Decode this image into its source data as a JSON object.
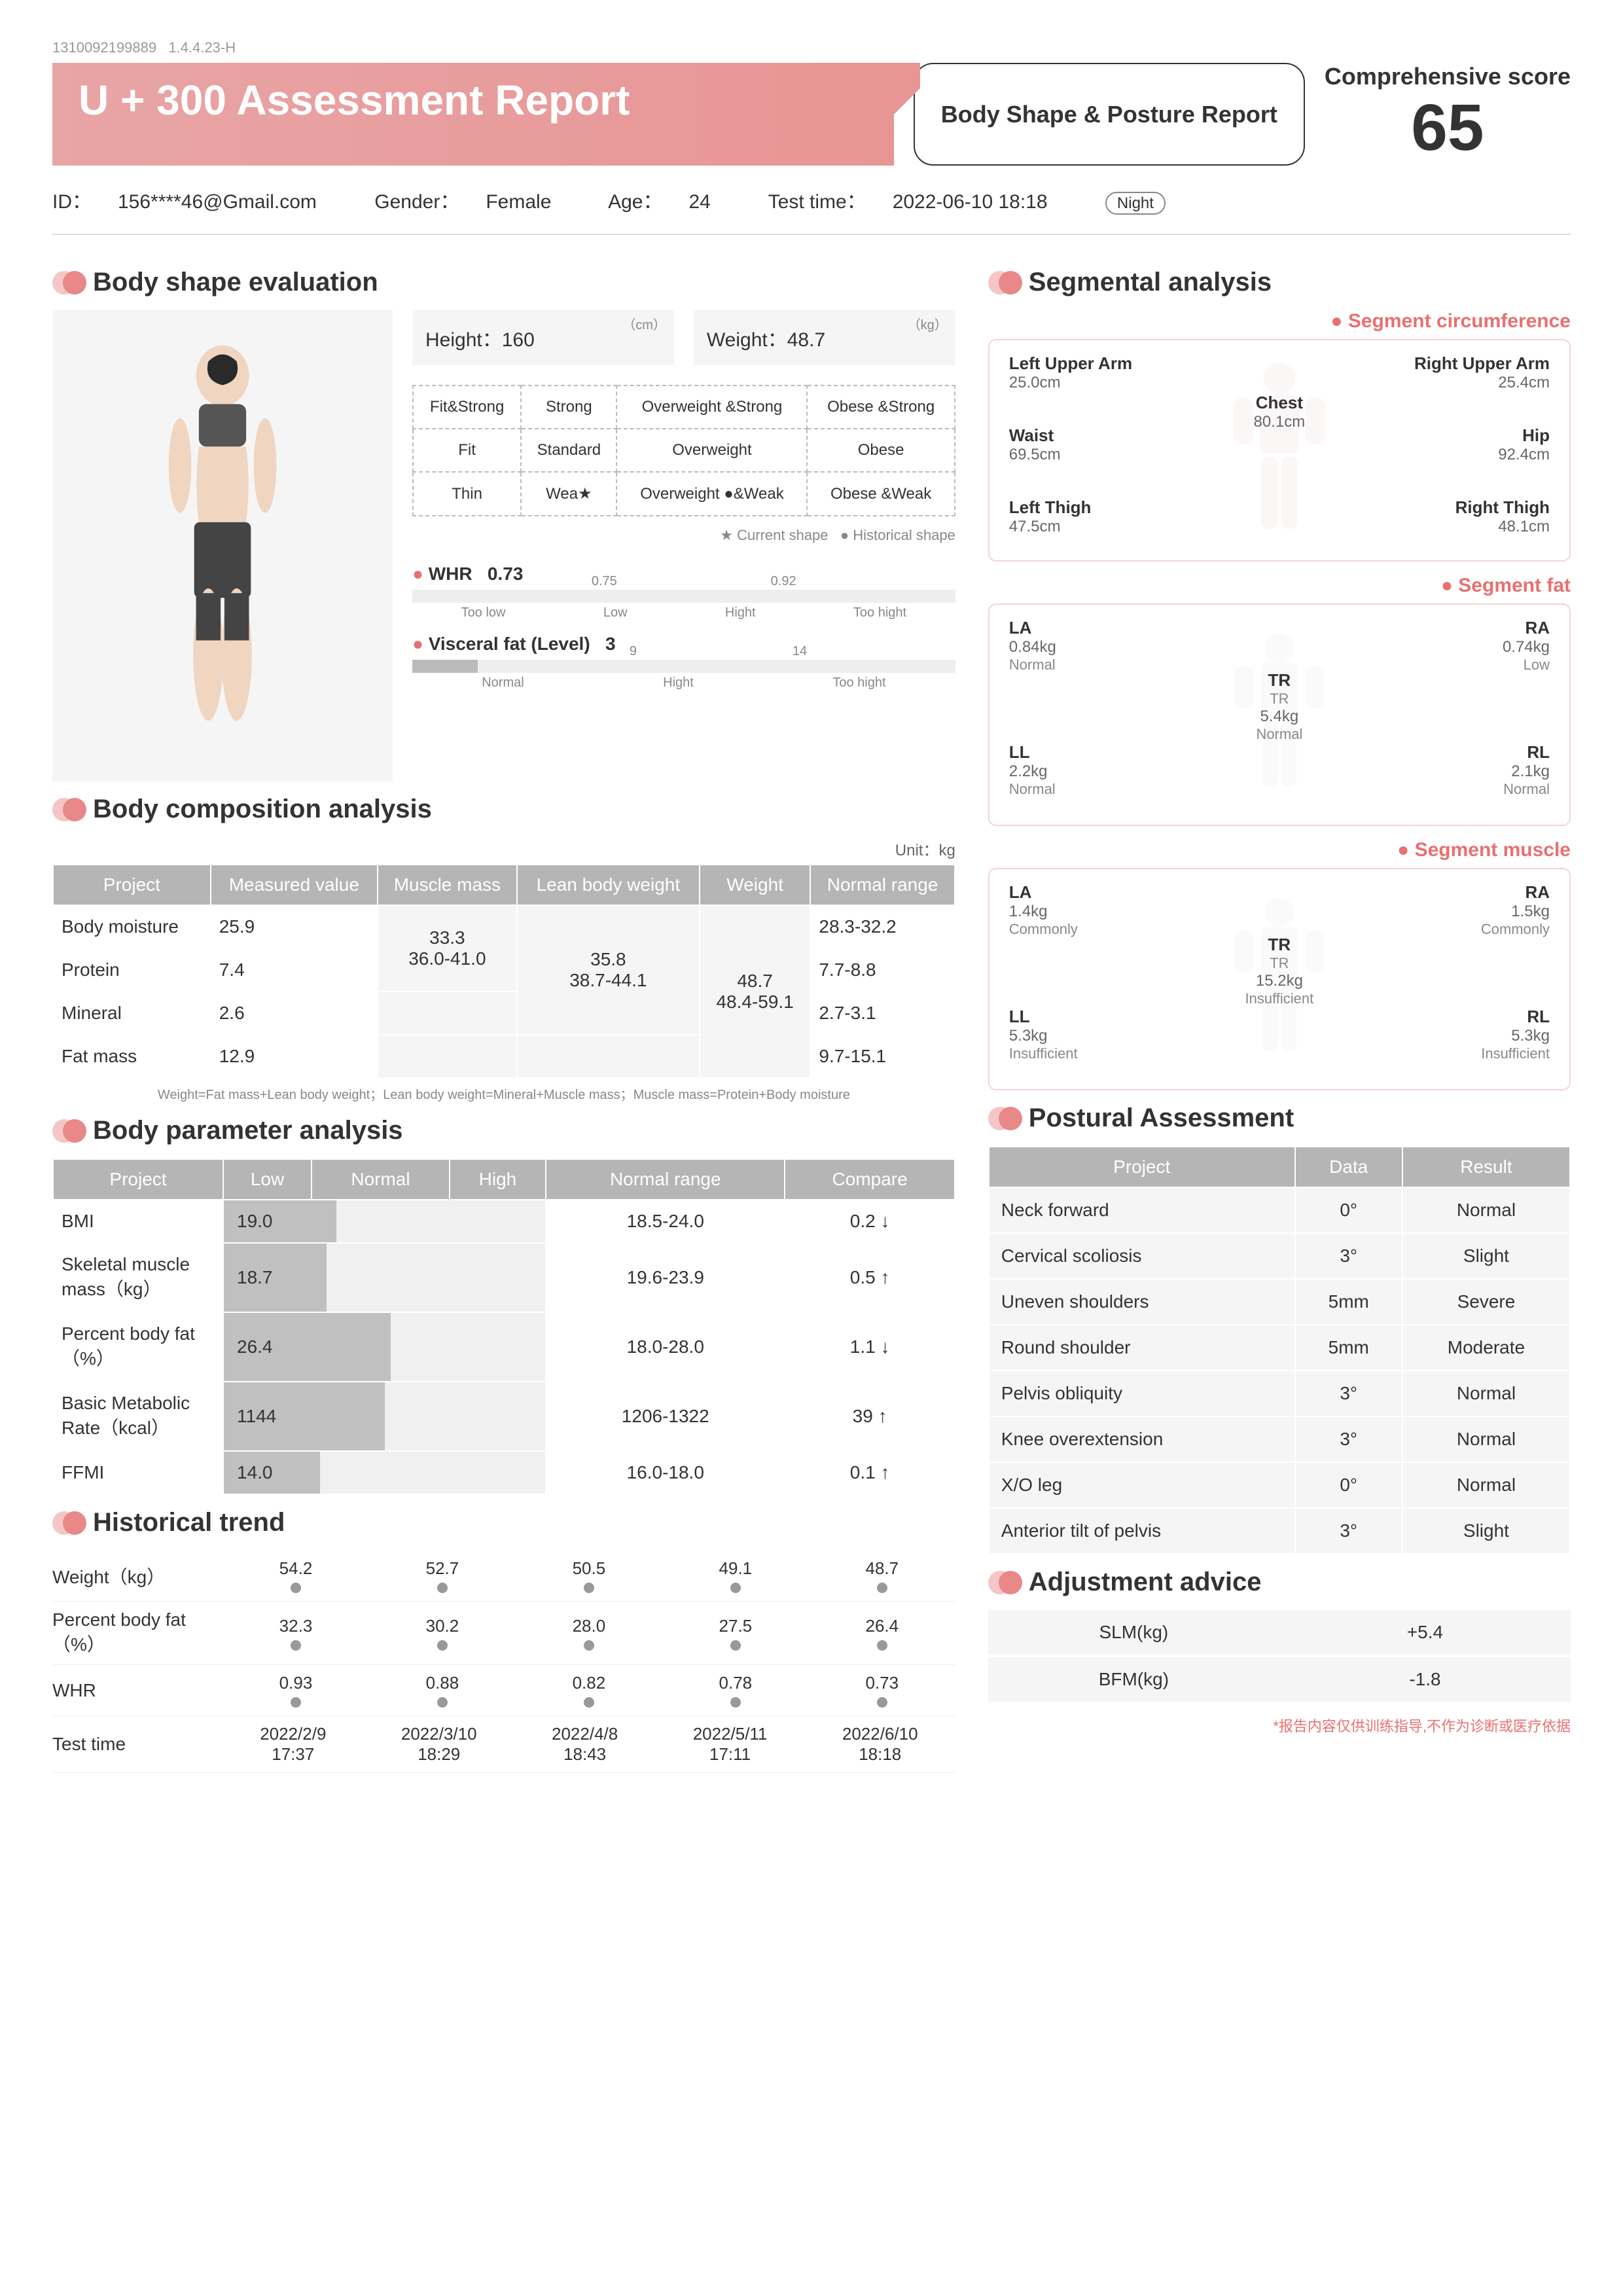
{
  "meta": {
    "serial": "1310092199889",
    "version": "1.4.4.23-H"
  },
  "header": {
    "title": "U + 300  Assessment Report",
    "subtype": "Body Shape & Posture Report",
    "score_label": "Comprehensive score",
    "score": "65"
  },
  "info": {
    "id_label": "ID：",
    "id": "156****46@Gmail.com",
    "gender_label": "Gender：",
    "gender": "Female",
    "age_label": "Age：",
    "age": "24",
    "time_label": "Test time：",
    "time": "2022-06-10 18:18",
    "badge": "Night"
  },
  "body_shape": {
    "title": "Body shape evaluation",
    "height_label": "Height：",
    "height": "160",
    "height_unit": "（cm）",
    "weight_label": "Weight：",
    "weight": "48.7",
    "weight_unit": "（kg）",
    "grid": [
      [
        "Fit&Strong",
        "Strong",
        "Overweight &Strong",
        "Obese &Strong"
      ],
      [
        "Fit",
        "Standard",
        "Overweight",
        "Obese"
      ],
      [
        "Thin",
        "Weak",
        "Overweight ●&Weak",
        "Obese &Weak"
      ]
    ],
    "legend_current": "★ Current shape",
    "legend_hist": "● Historical shape",
    "whr_label": "WHR",
    "whr": "0.73",
    "whr_ticks": [
      "0.75",
      "0.92"
    ],
    "whr_cats": [
      "Too low",
      "Low",
      "Hight",
      "Too hight"
    ],
    "vf_label": "Visceral fat (Level)",
    "vf": "3",
    "vf_ticks": [
      "9",
      "14"
    ],
    "vf_cats": [
      "Normal",
      "Hight",
      "Too hight"
    ]
  },
  "composition": {
    "title": "Body composition analysis",
    "unit": "Unit：kg",
    "headers": [
      "Project",
      "Measured value",
      "Muscle mass",
      "Lean body weight",
      "Weight",
      "Normal range"
    ],
    "rows": [
      {
        "p": "Body moisture",
        "m": "25.9",
        "r": "28.3-32.2"
      },
      {
        "p": "Protein",
        "m": "7.4",
        "r": "7.7-8.8"
      },
      {
        "p": "Mineral",
        "m": "2.6",
        "r": "2.7-3.1"
      },
      {
        "p": "Fat mass",
        "m": "12.9",
        "r": "9.7-15.1"
      }
    ],
    "mm": "33.3",
    "mm_r": "36.0-41.0",
    "lbw": "35.8",
    "lbw_r": "38.7-44.1",
    "wt": "48.7",
    "wt_r": "48.4-59.1",
    "note": "Weight=Fat mass+Lean body weight；Lean body weight=Mineral+Muscle mass；Muscle mass=Protein+Body moisture"
  },
  "params": {
    "title": "Body parameter analysis",
    "headers": [
      "Project",
      "Low",
      "Normal",
      "High",
      "Normal range",
      "Compare"
    ],
    "rows": [
      {
        "p": "BMI",
        "v": "19.0",
        "pct": 35,
        "r": "18.5-24.0",
        "c": "0.2 ↓"
      },
      {
        "p": "Skeletal muscle mass（kg）",
        "v": "18.7",
        "pct": 32,
        "r": "19.6-23.9",
        "c": "0.5 ↑"
      },
      {
        "p": "Percent body fat（%）",
        "v": "26.4",
        "pct": 52,
        "r": "18.0-28.0",
        "c": "1.1 ↓"
      },
      {
        "p": "Basic Metabolic Rate（kcal）",
        "v": "1144",
        "pct": 50,
        "r": "1206-1322",
        "c": "39 ↑"
      },
      {
        "p": "FFMI",
        "v": "14.0",
        "pct": 30,
        "r": "16.0-18.0",
        "c": "0.1 ↑"
      }
    ]
  },
  "trend": {
    "title": "Historical trend",
    "rows": [
      {
        "l": "Weight（kg）",
        "v": [
          "54.2",
          "52.7",
          "50.5",
          "49.1",
          "48.7"
        ]
      },
      {
        "l": "Percent body fat（%）",
        "v": [
          "32.3",
          "30.2",
          "28.0",
          "27.5",
          "26.4"
        ]
      },
      {
        "l": "WHR",
        "v": [
          "0.93",
          "0.88",
          "0.82",
          "0.78",
          "0.73"
        ]
      },
      {
        "l": "Test time",
        "v": [
          "2022/2/9 17:37",
          "2022/3/10 18:29",
          "2022/4/8 18:43",
          "2022/5/11 17:11",
          "2022/6/10 18:18"
        ]
      }
    ]
  },
  "segmental": {
    "title": "Segmental analysis",
    "circ_title": "Segment circumference",
    "circ": {
      "lua": {
        "l": "Left Upper Arm",
        "v": "25.0cm"
      },
      "rua": {
        "l": "Right Upper Arm",
        "v": "25.4cm"
      },
      "chest": {
        "l": "Chest",
        "v": "80.1cm"
      },
      "waist": {
        "l": "Waist",
        "v": "69.5cm"
      },
      "hip": {
        "l": "Hip",
        "v": "92.4cm"
      },
      "lt": {
        "l": "Left Thigh",
        "v": "47.5cm"
      },
      "rt": {
        "l": "Right Thigh",
        "v": "48.1cm"
      }
    },
    "fat_title": "Segment fat",
    "fat": {
      "la": {
        "l": "LA",
        "v": "0.84kg",
        "s": "Normal"
      },
      "ra": {
        "l": "RA",
        "v": "0.74kg",
        "s": "Low"
      },
      "tr": {
        "l": "TR",
        "v": "5.4kg",
        "s": "Normal",
        "sub": "TR"
      },
      "ll": {
        "l": "LL",
        "v": "2.2kg",
        "s": "Normal"
      },
      "rl": {
        "l": "RL",
        "v": "2.1kg",
        "s": "Normal"
      }
    },
    "muscle_title": "Segment muscle",
    "muscle": {
      "la": {
        "l": "LA",
        "v": "1.4kg",
        "s": "Commonly"
      },
      "ra": {
        "l": "RA",
        "v": "1.5kg",
        "s": "Commonly"
      },
      "tr": {
        "l": "TR",
        "v": "15.2kg",
        "s": "Insufficient",
        "sub": "TR"
      },
      "ll": {
        "l": "LL",
        "v": "5.3kg",
        "s": "Insufficient"
      },
      "rl": {
        "l": "RL",
        "v": "5.3kg",
        "s": "Insufficient"
      }
    }
  },
  "postural": {
    "title": "Postural Assessment",
    "headers": [
      "Project",
      "Data",
      "Result"
    ],
    "rows": [
      {
        "p": "Neck forward",
        "d": "0°",
        "r": "Normal"
      },
      {
        "p": "Cervical scoliosis",
        "d": "3°",
        "r": "Slight"
      },
      {
        "p": "Uneven shoulders",
        "d": "5mm",
        "r": "Severe"
      },
      {
        "p": "Round shoulder",
        "d": "5mm",
        "r": "Moderate"
      },
      {
        "p": "Pelvis obliquity",
        "d": "3°",
        "r": "Normal"
      },
      {
        "p": "Knee overextension",
        "d": "3°",
        "r": "Normal"
      },
      {
        "p": "X/O leg",
        "d": "0°",
        "r": "Normal"
      },
      {
        "p": "Anterior tilt of pelvis",
        "d": "3°",
        "r": "Slight"
      }
    ]
  },
  "adjustment": {
    "title": "Adjustment advice",
    "rows": [
      {
        "l": "SLM(kg)",
        "v": "+5.4"
      },
      {
        "l": "BFM(kg)",
        "v": "-1.8"
      }
    ]
  },
  "disclaimer": "*报告内容仅供训练指导,不作为诊断或医疗依据"
}
